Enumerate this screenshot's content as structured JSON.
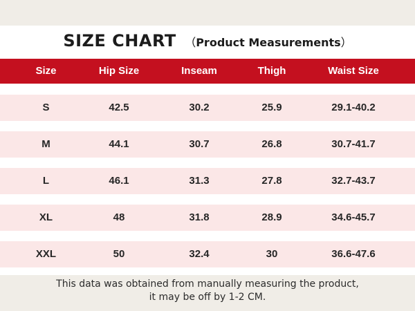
{
  "title": {
    "main": "SIZE CHART",
    "open_paren": "（",
    "sub": "Product Measurements",
    "close_paren": "）"
  },
  "header": [
    "Size",
    "Hip Size",
    "Inseam",
    "Thigh",
    "Waist Size"
  ],
  "rows": [
    [
      "S",
      "42.5",
      "30.2",
      "25.9",
      "29.1-40.2"
    ],
    [
      "M",
      "44.1",
      "30.7",
      "26.8",
      "30.7-41.7"
    ],
    [
      "L",
      "46.1",
      "31.3",
      "27.8",
      "32.7-43.7"
    ],
    [
      "XL",
      "48",
      "31.8",
      "28.9",
      "34.6-45.7"
    ],
    [
      "XXL",
      "50",
      "32.4",
      "30",
      "36.6-47.6"
    ]
  ],
  "footnote": {
    "line1": "This data was obtained from manually measuring the product,",
    "line2": "it may be off by 1-2 CM."
  },
  "colors": {
    "header_bg": "#c4101f",
    "row_bg": "#fbe7e7",
    "page_bg": "#f0ede7"
  }
}
